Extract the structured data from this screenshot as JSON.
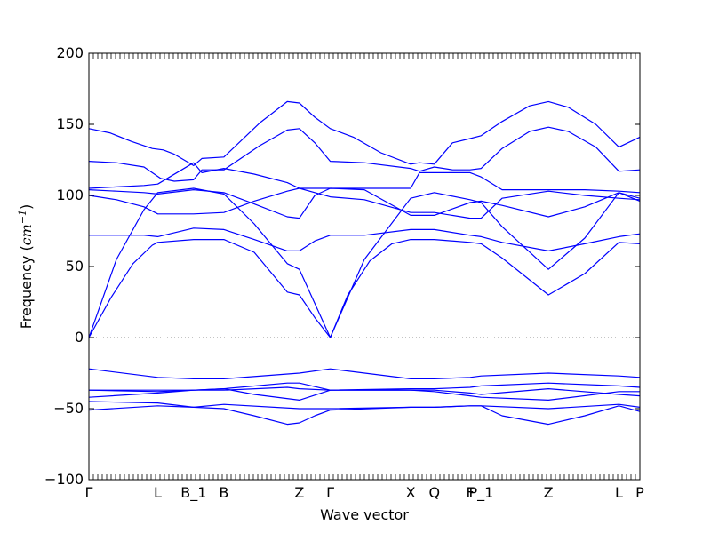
{
  "chart_data": {
    "type": "line",
    "title": "",
    "xlabel": "Wave vector",
    "ylabel": "Frequency ($cm^{-1}$)",
    "ylabel_display": {
      "prefix": "Frequency (",
      "unit": "cm",
      "exponent": "−1",
      "suffix": ")"
    },
    "ylim": [
      -100,
      200
    ],
    "yticks": [
      -100,
      -50,
      0,
      50,
      100,
      150,
      200
    ],
    "x_tick_labels": [
      "Γ",
      "L",
      "B_1",
      "B",
      "Z",
      "Γ",
      "X",
      "Q",
      "F",
      "P_1",
      "Z",
      "L",
      "P"
    ],
    "x_tick_positions": [
      0.0,
      0.125,
      0.19,
      0.245,
      0.382,
      0.438,
      0.584,
      0.627,
      0.692,
      0.712,
      0.834,
      0.962,
      1.0
    ],
    "x_tick_positions_unit": "normalized path coordinate along the wave-vector axis",
    "xlim": [
      0,
      1
    ],
    "zero_line": {
      "y": 0,
      "style": "dotted",
      "color": "#888888"
    },
    "line_color": "#0000ff",
    "grid": false,
    "legend": "none",
    "series": [
      {
        "x": [
          0.0,
          0.038,
          0.077,
          0.115,
          0.135,
          0.155,
          0.19,
          0.205,
          0.245,
          0.31,
          0.36,
          0.382,
          0.41,
          0.438,
          0.48,
          0.53,
          0.584,
          0.6,
          0.627,
          0.66,
          0.692,
          0.712,
          0.75,
          0.8,
          0.834,
          0.87,
          0.92,
          0.962,
          1.0
        ],
        "y": [
          147,
          144,
          138,
          133,
          132,
          129,
          121,
          126,
          127,
          151,
          166,
          165,
          155,
          147,
          141,
          130,
          122,
          123,
          122,
          137,
          140,
          142,
          152,
          163,
          166,
          162,
          150,
          134,
          141
        ]
      },
      {
        "x": [
          0.0,
          0.05,
          0.1,
          0.13,
          0.155,
          0.19,
          0.205,
          0.245,
          0.31,
          0.36,
          0.382,
          0.41,
          0.438,
          0.5,
          0.584,
          0.6,
          0.627,
          0.66,
          0.692,
          0.712,
          0.75,
          0.8,
          0.834,
          0.87,
          0.92,
          0.962,
          1.0
        ],
        "y": [
          124,
          123,
          120,
          112,
          110,
          111,
          118,
          118,
          135,
          146,
          147,
          137,
          124,
          123,
          119,
          117,
          120,
          118,
          118,
          119,
          133,
          145,
          148,
          145,
          134,
          117,
          118
        ]
      },
      {
        "x": [
          0.0,
          0.05,
          0.1,
          0.125,
          0.19,
          0.205,
          0.245,
          0.3,
          0.36,
          0.382,
          0.41,
          0.438,
          0.5,
          0.584,
          0.6,
          0.627,
          0.692,
          0.712,
          0.75,
          0.834,
          0.9,
          0.962,
          1.0
        ],
        "y": [
          105,
          106,
          107,
          108,
          123,
          116,
          119,
          115,
          109,
          105,
          105,
          105,
          105,
          105,
          116,
          116,
          116,
          113,
          104,
          104,
          104,
          103,
          102
        ]
      },
      {
        "x": [
          0.0,
          0.05,
          0.1,
          0.125,
          0.19,
          0.245,
          0.3,
          0.36,
          0.382,
          0.41,
          0.438,
          0.5,
          0.584,
          0.627,
          0.692,
          0.712,
          0.75,
          0.834,
          0.9,
          0.962,
          1.0
        ],
        "y": [
          100,
          97,
          92,
          87,
          87,
          88,
          96,
          103,
          105,
          102,
          99,
          97,
          88,
          88,
          84,
          84,
          98,
          103,
          100,
          98,
          97
        ]
      },
      {
        "x": [
          0.0,
          0.05,
          0.1,
          0.125,
          0.19,
          0.245,
          0.3,
          0.36,
          0.382,
          0.41,
          0.438,
          0.5,
          0.584,
          0.627,
          0.692,
          0.712,
          0.75,
          0.834,
          0.9,
          0.962,
          1.0
        ],
        "y": [
          104,
          103,
          102,
          101,
          104,
          102,
          94,
          85,
          84,
          100,
          105,
          104,
          86,
          86,
          95,
          96,
          93,
          85,
          92,
          102,
          98
        ]
      },
      {
        "x": [
          0.0,
          0.05,
          0.1,
          0.125,
          0.19,
          0.245,
          0.3,
          0.36,
          0.382,
          0.41,
          0.438,
          0.5,
          0.584,
          0.627,
          0.692,
          0.712,
          0.75,
          0.834,
          0.9,
          0.962,
          1.0
        ],
        "y": [
          72,
          72,
          72,
          71,
          77,
          76,
          69,
          61,
          61,
          68,
          72,
          72,
          76,
          76,
          72,
          71,
          67,
          61,
          66,
          71,
          73
        ]
      },
      {
        "x": [
          0.0,
          0.05,
          0.1,
          0.125,
          0.19,
          0.245,
          0.3,
          0.36,
          0.382,
          0.41,
          0.438,
          0.5,
          0.584,
          0.627,
          0.692,
          0.712,
          0.75,
          0.834,
          0.9,
          0.962,
          1.0
        ],
        "y": [
          0,
          55,
          90,
          102,
          105,
          101,
          80,
          52,
          48,
          24,
          0,
          55,
          98,
          102,
          97,
          95,
          78,
          48,
          70,
          102,
          96
        ]
      },
      {
        "x": [
          0.0,
          0.04,
          0.08,
          0.115,
          0.125,
          0.19,
          0.245,
          0.3,
          0.36,
          0.382,
          0.41,
          0.438,
          0.47,
          0.51,
          0.55,
          0.584,
          0.627,
          0.692,
          0.712,
          0.75,
          0.834,
          0.9,
          0.962,
          1.0
        ],
        "y": [
          0,
          28,
          52,
          65,
          67,
          69,
          69,
          60,
          32,
          30,
          14,
          0,
          30,
          54,
          66,
          69,
          69,
          67,
          66,
          56,
          30,
          45,
          67,
          66
        ]
      },
      {
        "x": [
          0.0,
          0.125,
          0.19,
          0.245,
          0.382,
          0.438,
          0.584,
          0.627,
          0.692,
          0.712,
          0.834,
          0.962,
          1.0
        ],
        "y": [
          -22,
          -28,
          -29,
          -29,
          -25,
          -22,
          -29,
          -29,
          -28,
          -27,
          -25,
          -27,
          -28
        ]
      },
      {
        "x": [
          0.0,
          0.125,
          0.19,
          0.245,
          0.36,
          0.382,
          0.438,
          0.584,
          0.627,
          0.692,
          0.712,
          0.834,
          0.962,
          1.0
        ],
        "y": [
          -37,
          -38,
          -37,
          -36,
          -32,
          -32,
          -37,
          -36,
          -36,
          -35,
          -34,
          -32,
          -34,
          -35
        ]
      },
      {
        "x": [
          0.0,
          0.125,
          0.19,
          0.245,
          0.36,
          0.382,
          0.438,
          0.584,
          0.627,
          0.692,
          0.712,
          0.834,
          0.962,
          1.0
        ],
        "y": [
          -37,
          -37,
          -37,
          -37,
          -35,
          -36,
          -37,
          -37,
          -37,
          -39,
          -40,
          -36,
          -40,
          -41
        ]
      },
      {
        "x": [
          0.0,
          0.125,
          0.19,
          0.245,
          0.3,
          0.382,
          0.438,
          0.5,
          0.584,
          0.627,
          0.692,
          0.712,
          0.834,
          0.962,
          1.0
        ],
        "y": [
          -42,
          -39,
          -37,
          -36,
          -40,
          -44,
          -37,
          -37,
          -37,
          -38,
          -41,
          -42,
          -44,
          -38,
          -38
        ]
      },
      {
        "x": [
          0.0,
          0.125,
          0.19,
          0.245,
          0.382,
          0.438,
          0.584,
          0.627,
          0.692,
          0.712,
          0.834,
          0.962,
          1.0
        ],
        "y": [
          -45,
          -46,
          -49,
          -47,
          -50,
          -50,
          -49,
          -49,
          -48,
          -48,
          -50,
          -47,
          -49
        ]
      },
      {
        "x": [
          0.0,
          0.125,
          0.19,
          0.245,
          0.3,
          0.36,
          0.382,
          0.41,
          0.438,
          0.584,
          0.627,
          0.692,
          0.712,
          0.75,
          0.834,
          0.9,
          0.962,
          1.0
        ],
        "y": [
          -51,
          -48,
          -49,
          -50,
          -55,
          -61,
          -60,
          -55,
          -51,
          -49,
          -49,
          -48,
          -48,
          -55,
          -61,
          -55,
          -48,
          -52
        ]
      }
    ]
  }
}
